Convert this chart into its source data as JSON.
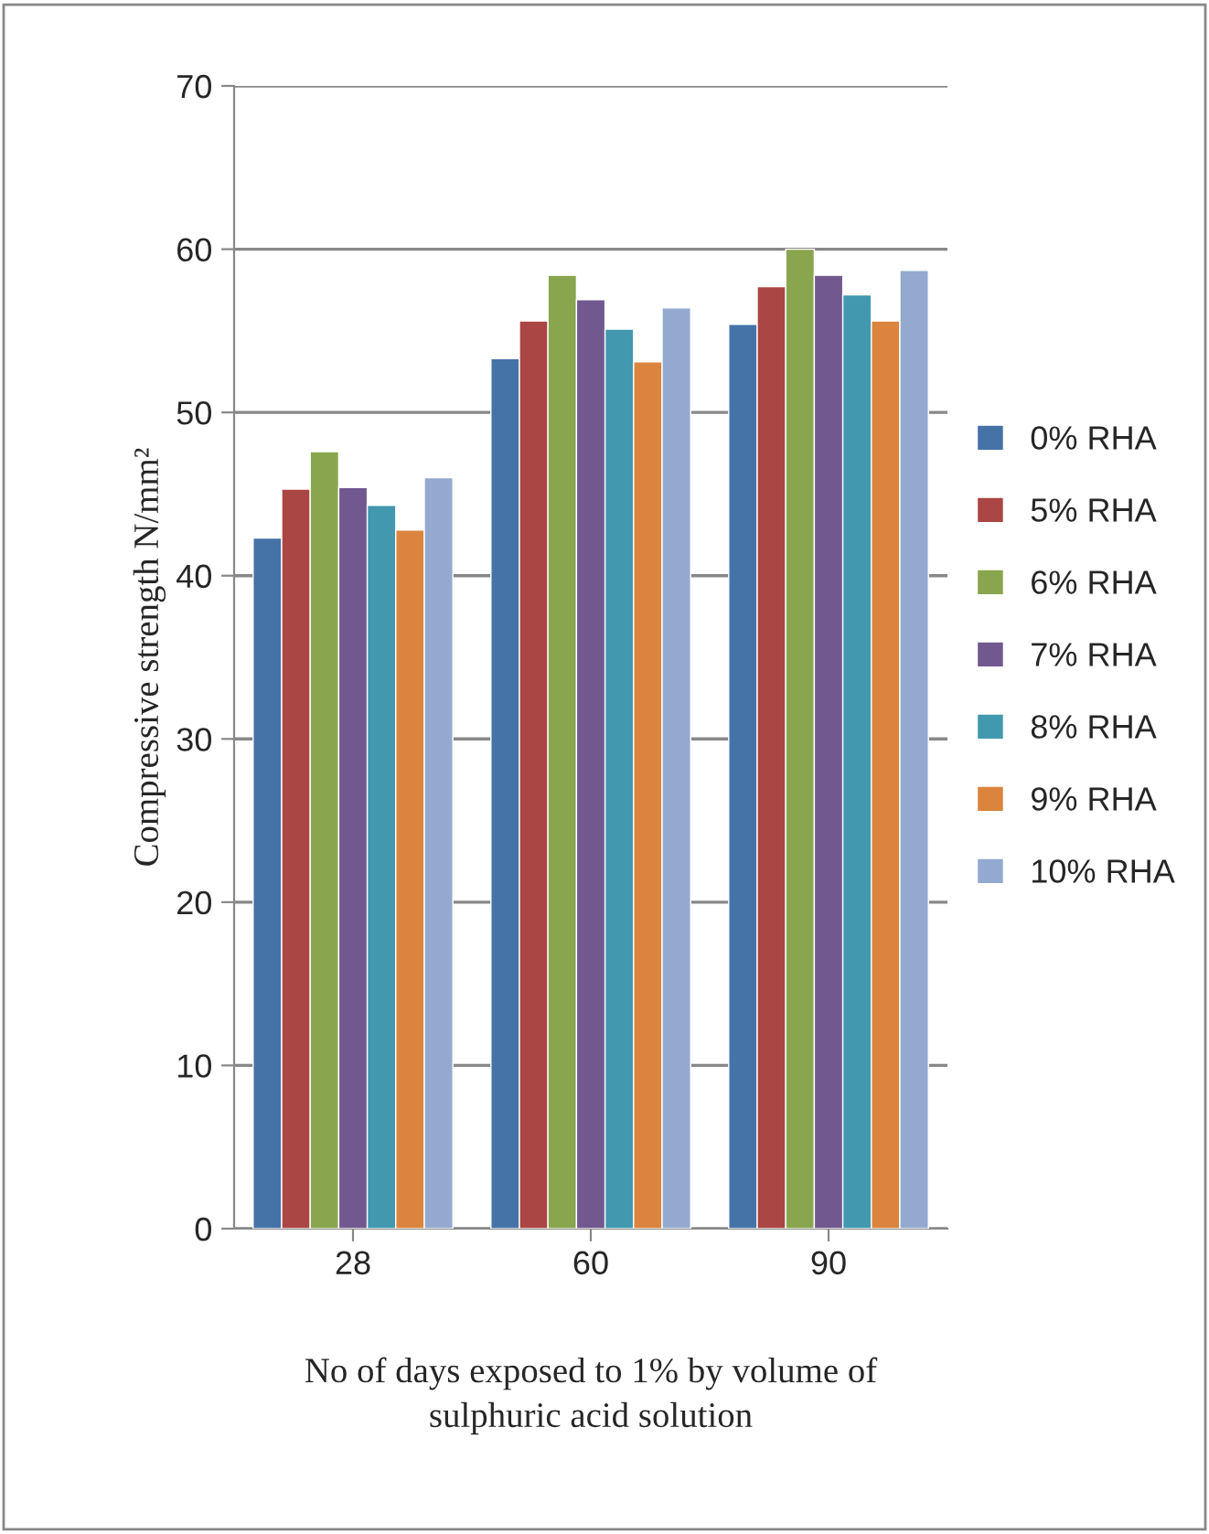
{
  "chart_data": {
    "type": "bar",
    "xlabel": "No of days exposed to 1% by volume of\nsulphuric acid solution",
    "ylabel": "Compressive strength N/mm²",
    "categories": [
      "28",
      "60",
      "90"
    ],
    "series": [
      {
        "name": "0% RHA",
        "color": "#4572a7",
        "values": [
          42.3,
          53.3,
          55.4
        ]
      },
      {
        "name": "5% RHA",
        "color": "#aa4643",
        "values": [
          45.3,
          55.6,
          57.7
        ]
      },
      {
        "name": "6% RHA",
        "color": "#89a54e",
        "values": [
          47.6,
          58.4,
          60.0
        ]
      },
      {
        "name": "7% RHA",
        "color": "#71588f",
        "values": [
          45.4,
          56.9,
          58.4
        ]
      },
      {
        "name": "8% RHA",
        "color": "#4198af",
        "values": [
          44.3,
          55.1,
          57.2
        ]
      },
      {
        "name": "9% RHA",
        "color": "#db843d",
        "values": [
          42.8,
          53.1,
          55.6
        ]
      },
      {
        "name": "10% RHA",
        "color": "#93a9cf",
        "values": [
          46.0,
          56.4,
          58.7
        ]
      }
    ],
    "ylim": [
      0,
      70
    ],
    "yticks": [
      0,
      10,
      20,
      30,
      40,
      50,
      60,
      70
    ],
    "grid": "y",
    "legend": "right"
  }
}
